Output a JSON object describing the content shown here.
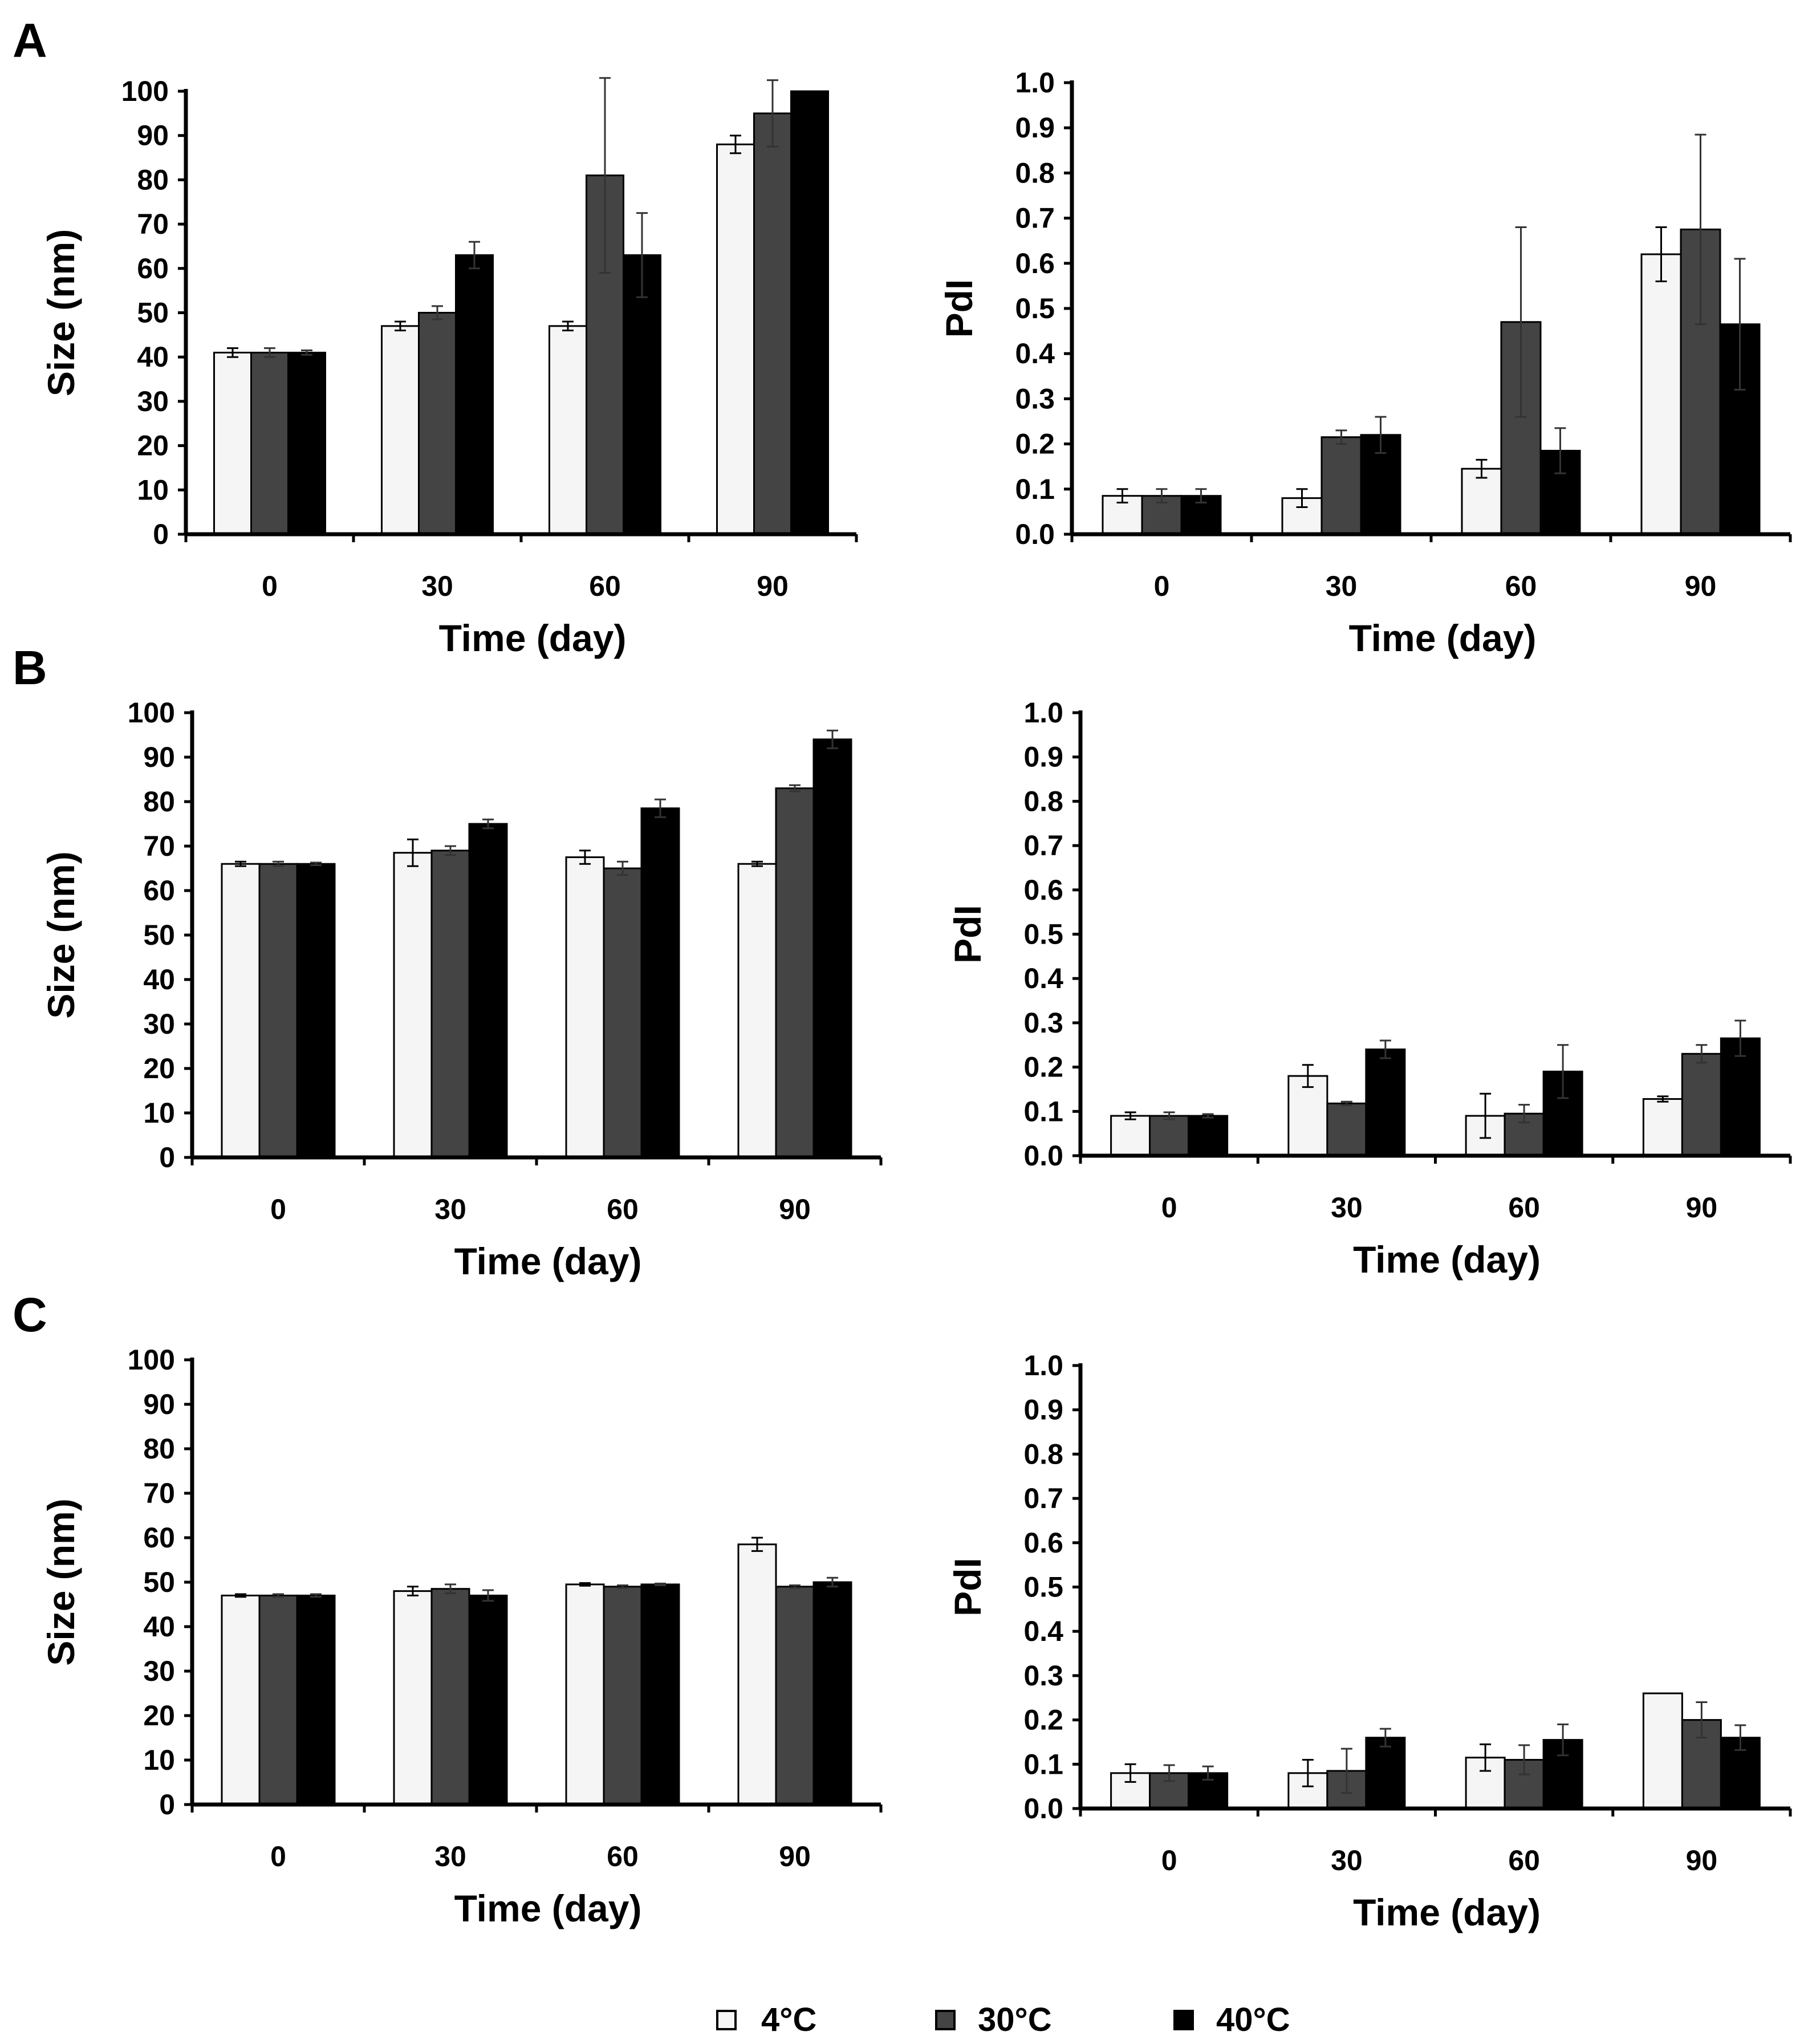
{
  "figure": {
    "panel_letters": [
      "A",
      "B",
      "C"
    ],
    "legend": [
      {
        "label": "4°C",
        "color": "#f5f5f5"
      },
      {
        "label": "30°C",
        "color": "#444444"
      },
      {
        "label": "40°C",
        "color": "#000000"
      }
    ]
  },
  "chart_data": [
    {
      "panel": "A",
      "type": "bar",
      "metric": "size",
      "categories": [
        "0",
        "30",
        "60",
        "90"
      ],
      "xlabel": "Time (day)",
      "ylabel": "Size (nm)",
      "ylim": [
        0,
        100
      ],
      "yticks": [
        "0",
        "10",
        "20",
        "30",
        "40",
        "50",
        "60",
        "70",
        "80",
        "90",
        "100"
      ],
      "series": [
        {
          "name": "4°C",
          "values": [
            41,
            47,
            47,
            88
          ],
          "errors": [
            1,
            1,
            1,
            2
          ]
        },
        {
          "name": "30°C",
          "values": [
            41,
            50,
            81,
            95
          ],
          "errors": [
            1,
            1.5,
            22,
            7.5
          ]
        },
        {
          "name": "40°C",
          "values": [
            41,
            63,
            63,
            100
          ],
          "errors": [
            0.5,
            3,
            9.5,
            0
          ]
        }
      ]
    },
    {
      "panel": "A",
      "type": "bar",
      "metric": "pdi",
      "categories": [
        "0",
        "30",
        "60",
        "90"
      ],
      "xlabel": "Time (day)",
      "ylabel": "PdI",
      "ylim": [
        0,
        1
      ],
      "yticks": [
        "0.0",
        "0.1",
        "0.2",
        "0.3",
        "0.4",
        "0.5",
        "0.6",
        "0.7",
        "0.8",
        "0.9",
        "1.0"
      ],
      "series": [
        {
          "name": "4°C",
          "values": [
            0.085,
            0.08,
            0.145,
            0.62
          ],
          "errors": [
            0.015,
            0.02,
            0.02,
            0.06
          ]
        },
        {
          "name": "30°C",
          "values": [
            0.085,
            0.215,
            0.47,
            0.675
          ],
          "errors": [
            0.015,
            0.015,
            0.21,
            0.21
          ]
        },
        {
          "name": "40°C",
          "values": [
            0.085,
            0.22,
            0.185,
            0.465
          ],
          "errors": [
            0.015,
            0.04,
            0.05,
            0.145
          ]
        }
      ]
    },
    {
      "panel": "B",
      "type": "bar",
      "metric": "size",
      "categories": [
        "0",
        "30",
        "60",
        "90"
      ],
      "xlabel": "Time (day)",
      "ylabel": "Size (nm)",
      "ylim": [
        0,
        100
      ],
      "yticks": [
        "0",
        "10",
        "20",
        "30",
        "40",
        "50",
        "60",
        "70",
        "80",
        "90",
        "100"
      ],
      "series": [
        {
          "name": "4°C",
          "values": [
            66,
            68.5,
            67.5,
            66
          ],
          "errors": [
            0.5,
            3,
            1.5,
            0.5
          ]
        },
        {
          "name": "30°C",
          "values": [
            66,
            69,
            65,
            83
          ],
          "errors": [
            0.5,
            1,
            1.5,
            0.7
          ]
        },
        {
          "name": "40°C",
          "values": [
            66,
            75,
            78.5,
            94
          ],
          "errors": [
            0.3,
            1,
            2,
            2
          ]
        }
      ]
    },
    {
      "panel": "B",
      "type": "bar",
      "metric": "pdi",
      "categories": [
        "0",
        "30",
        "60",
        "90"
      ],
      "xlabel": "Time (day)",
      "ylabel": "PdI",
      "ylim": [
        0,
        1
      ],
      "yticks": [
        "0.0",
        "0.1",
        "0.2",
        "0.3",
        "0.4",
        "0.5",
        "0.6",
        "0.7",
        "0.8",
        "0.9",
        "1.0"
      ],
      "series": [
        {
          "name": "4°C",
          "values": [
            0.09,
            0.18,
            0.09,
            0.128
          ],
          "errors": [
            0.008,
            0.025,
            0.05,
            0.006
          ]
        },
        {
          "name": "30°C",
          "values": [
            0.09,
            0.118,
            0.095,
            0.23
          ],
          "errors": [
            0.008,
            0.004,
            0.02,
            0.02
          ]
        },
        {
          "name": "40°C",
          "values": [
            0.09,
            0.24,
            0.19,
            0.265
          ],
          "errors": [
            0.004,
            0.02,
            0.06,
            0.04
          ]
        }
      ]
    },
    {
      "panel": "C",
      "type": "bar",
      "metric": "size",
      "categories": [
        "0",
        "30",
        "60",
        "90"
      ],
      "xlabel": "Time (day)",
      "ylabel": "Size (nm)",
      "ylim": [
        0,
        100
      ],
      "yticks": [
        "0",
        "10",
        "20",
        "30",
        "40",
        "50",
        "60",
        "70",
        "80",
        "90",
        "100"
      ],
      "series": [
        {
          "name": "4°C",
          "values": [
            47,
            48,
            49.5,
            58.5
          ],
          "errors": [
            0.3,
            1,
            0.3,
            1.5
          ]
        },
        {
          "name": "30°C",
          "values": [
            47,
            48.5,
            49,
            49
          ],
          "errors": [
            0.3,
            1,
            0.3,
            0.3
          ]
        },
        {
          "name": "40°C",
          "values": [
            47,
            47,
            49.5,
            50
          ],
          "errors": [
            0.3,
            1.2,
            0.2,
            1
          ]
        }
      ]
    },
    {
      "panel": "C",
      "type": "bar",
      "metric": "pdi",
      "categories": [
        "0",
        "30",
        "60",
        "90"
      ],
      "xlabel": "Time (day)",
      "ylabel": "PdI",
      "ylim": [
        0,
        1
      ],
      "yticks": [
        "0.0",
        "0.1",
        "0.2",
        "0.3",
        "0.4",
        "0.5",
        "0.6",
        "0.7",
        "0.8",
        "0.9",
        "1.0"
      ],
      "series": [
        {
          "name": "4°C",
          "values": [
            0.08,
            0.08,
            0.115,
            0.26
          ],
          "errors": [
            0.02,
            0.03,
            0.03,
            0
          ]
        },
        {
          "name": "30°C",
          "values": [
            0.08,
            0.085,
            0.11,
            0.2
          ],
          "errors": [
            0.018,
            0.05,
            0.033,
            0.04
          ]
        },
        {
          "name": "40°C",
          "values": [
            0.08,
            0.16,
            0.155,
            0.16
          ],
          "errors": [
            0.015,
            0.02,
            0.035,
            0.028
          ]
        }
      ]
    }
  ]
}
